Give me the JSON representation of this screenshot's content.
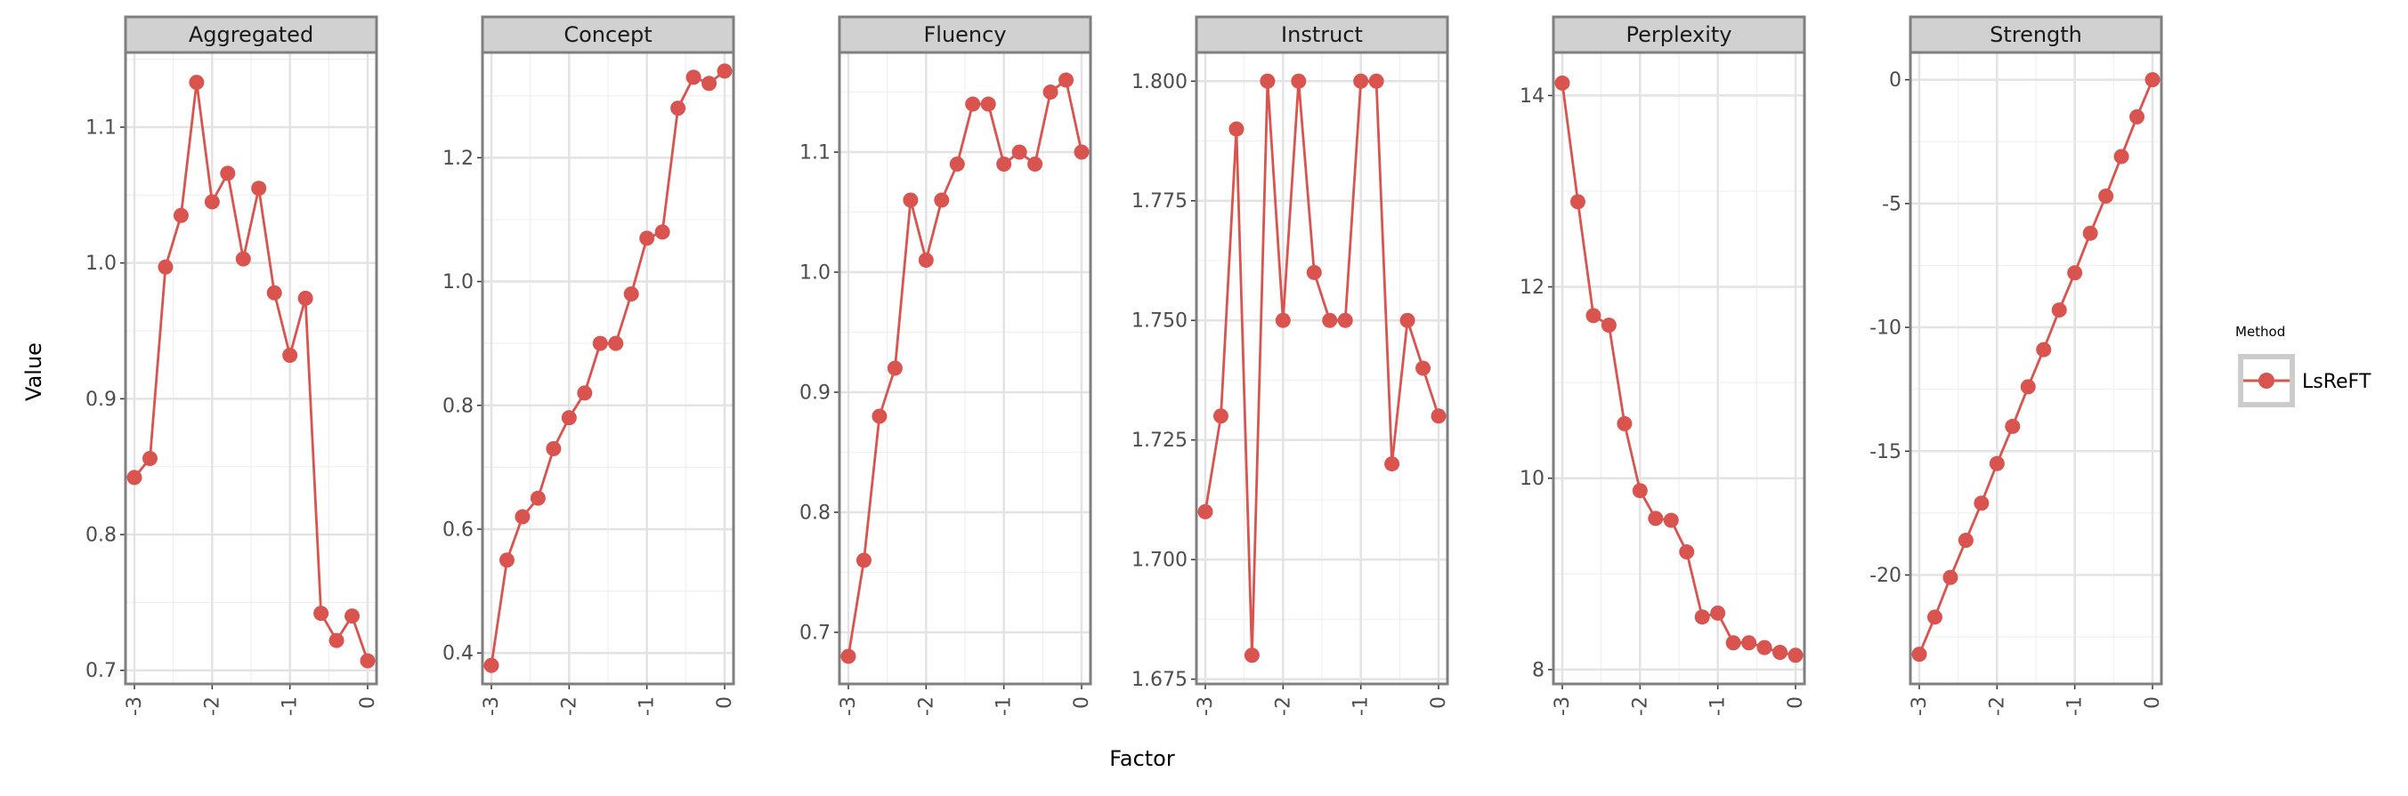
{
  "chart_data": {
    "type": "line",
    "xlabel": "Factor",
    "ylabel": "Value",
    "x": [
      -3.0,
      -2.8,
      -2.6,
      -2.4,
      -2.2,
      -2.0,
      -1.8,
      -1.6,
      -1.4,
      -1.2,
      -1.0,
      -0.8,
      -0.6,
      -0.4,
      -0.2,
      0.0
    ],
    "x_ticks": [
      -3,
      -2,
      -1,
      0
    ],
    "x_tick_labels": [
      "-3",
      "-2",
      "-1",
      "0"
    ],
    "legend": {
      "title": "Method",
      "position": "right",
      "entries": [
        "LsReFT"
      ]
    },
    "series_color": "#d9534f",
    "grid": true,
    "panels": [
      {
        "title": "Aggregated",
        "ylim": [
          0.69,
          1.155
        ],
        "y_ticks": [
          0.7,
          0.8,
          0.9,
          1.0,
          1.1
        ],
        "y_tick_labels": [
          "0.7",
          "0.8",
          "0.9",
          "1.0",
          "1.1"
        ],
        "series": [
          {
            "name": "LsReFT",
            "values": [
              0.842,
              0.856,
              0.997,
              1.035,
              1.133,
              1.045,
              1.066,
              1.003,
              1.055,
              0.978,
              0.932,
              0.974,
              0.742,
              0.722,
              0.74,
              0.707
            ]
          }
        ]
      },
      {
        "title": "Concept",
        "ylim": [
          0.35,
          1.37
        ],
        "y_ticks": [
          0.4,
          0.6,
          0.8,
          1.0,
          1.2
        ],
        "y_tick_labels": [
          "0.4",
          "0.6",
          "0.8",
          "1.0",
          "1.2"
        ],
        "series": [
          {
            "name": "LsReFT",
            "values": [
              0.38,
              0.55,
              0.62,
              0.65,
              0.73,
              0.78,
              0.82,
              0.9,
              0.9,
              0.98,
              1.07,
              1.08,
              1.28,
              1.33,
              1.32,
              1.34
            ]
          }
        ]
      },
      {
        "title": "Fluency",
        "ylim": [
          0.657,
          1.183
        ],
        "y_ticks": [
          0.7,
          0.8,
          0.9,
          1.0,
          1.1
        ],
        "y_tick_labels": [
          "0.7",
          "0.8",
          "0.9",
          "1.0",
          "1.1"
        ],
        "series": [
          {
            "name": "LsReFT",
            "values": [
              0.68,
              0.76,
              0.88,
              0.92,
              1.06,
              1.01,
              1.06,
              1.09,
              1.14,
              1.14,
              1.09,
              1.1,
              1.09,
              1.15,
              1.16,
              1.1
            ]
          }
        ]
      },
      {
        "title": "Instruct",
        "ylim": [
          1.674,
          1.806
        ],
        "y_ticks": [
          1.675,
          1.7,
          1.725,
          1.75,
          1.775,
          1.8
        ],
        "y_tick_labels": [
          "1.675",
          "1.700",
          "1.725",
          "1.750",
          "1.775",
          "1.800"
        ],
        "series": [
          {
            "name": "LsReFT",
            "values": [
              1.71,
              1.73,
              1.79,
              1.68,
              1.8,
              1.75,
              1.8,
              1.76,
              1.75,
              1.75,
              1.8,
              1.8,
              1.72,
              1.75,
              1.74,
              1.73
            ]
          }
        ]
      },
      {
        "title": "Perplexity",
        "ylim": [
          7.85,
          14.45
        ],
        "y_ticks": [
          8,
          10,
          12,
          14
        ],
        "y_tick_labels": [
          "8",
          "10",
          "12",
          "14"
        ],
        "series": [
          {
            "name": "LsReFT",
            "values": [
              14.13,
              12.89,
              11.7,
              11.6,
              10.57,
              9.87,
              9.58,
              9.56,
              9.23,
              8.55,
              8.59,
              8.28,
              8.28,
              8.23,
              8.18,
              8.15
            ]
          }
        ]
      },
      {
        "title": "Strength",
        "ylim": [
          -24.4,
          1.1
        ],
        "y_ticks": [
          -20,
          -15,
          -10,
          -5,
          0
        ],
        "y_tick_labels": [
          "-20",
          "-15",
          "-10",
          "-5",
          "0"
        ],
        "series": [
          {
            "name": "LsReFT",
            "values": [
              -23.2,
              -21.7,
              -20.1,
              -18.6,
              -17.1,
              -15.5,
              -14.0,
              -12.4,
              -10.9,
              -9.3,
              -7.8,
              -6.2,
              -4.7,
              -3.1,
              -1.5,
              0.0
            ]
          }
        ]
      }
    ]
  }
}
